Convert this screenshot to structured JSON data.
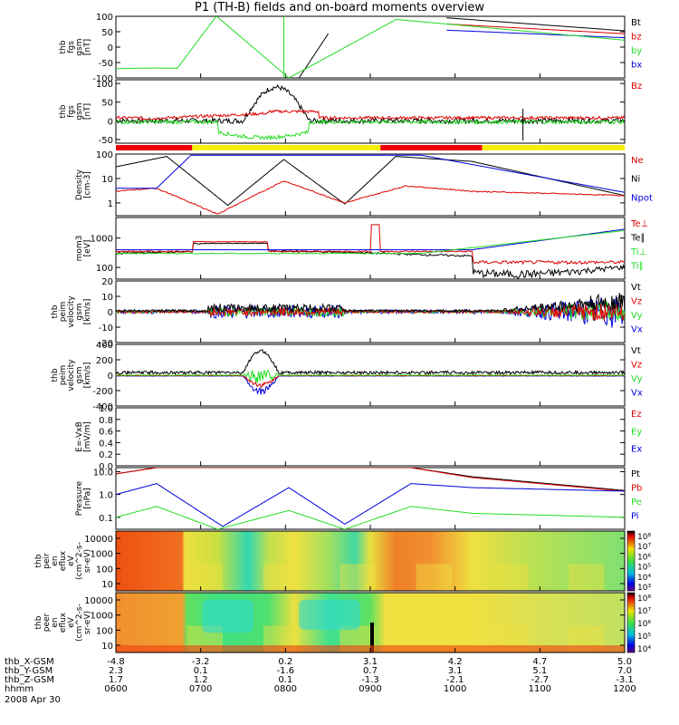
{
  "title": "P1 (TH-B) fields and on-board moments overview",
  "date": "2008 Apr 30",
  "colors": {
    "black": "#000000",
    "red": "#dd0000",
    "green": "#22dd22",
    "blue": "#0000dd",
    "yellow": "#f8f000",
    "bar_red": "#ee0000"
  },
  "ephemeris": {
    "labels": [
      "thb_X-GSM",
      "thb_Y-GSM",
      "thb_Z-GSM",
      "hhmm"
    ],
    "columns": [
      {
        "x": "-4.8",
        "y": "2.3",
        "z": "1.7",
        "t": "0600"
      },
      {
        "x": "-3.2",
        "y": "0.1",
        "z": "1.2",
        "t": "0700"
      },
      {
        "x": "0.2",
        "y": "-1.6",
        "z": "0.1",
        "t": "0800"
      },
      {
        "x": "3.1",
        "y": "0.7",
        "z": "-1.3",
        "t": "0900"
      },
      {
        "x": "4.2",
        "y": "3.1",
        "z": "-2.1",
        "t": "1000"
      },
      {
        "x": "4.7",
        "y": "5.1",
        "z": "-2.7",
        "t": "1100"
      },
      {
        "x": "5.0",
        "y": "7.0",
        "z": "-3.1",
        "t": "1200"
      }
    ]
  },
  "chart_data": {
    "type": "line",
    "x_range": [
      "0600",
      "1200"
    ],
    "mode_bar": [
      {
        "from": 0.0,
        "to": 0.15,
        "color": "red"
      },
      {
        "from": 0.15,
        "to": 0.52,
        "color": "yellow"
      },
      {
        "from": 0.52,
        "to": 0.72,
        "color": "red"
      },
      {
        "from": 0.72,
        "to": 1.0,
        "color": "yellow"
      }
    ],
    "panels": [
      {
        "ylabel": [
          "thb",
          "fgs",
          "gsm",
          "[nT]"
        ],
        "scale": "linear",
        "ylim": [
          -100,
          100
        ],
        "ticks": [
          "100",
          "50",
          "0",
          "-50",
          "-100"
        ],
        "legend": [
          {
            "t": "Bt",
            "c": "black"
          },
          {
            "t": "bz",
            "c": "red"
          },
          {
            "t": "by",
            "c": "green"
          },
          {
            "t": "bx",
            "c": "blue"
          }
        ]
      },
      {
        "ylabel": [
          "thb",
          "fgs",
          "gsm",
          "[nT]"
        ],
        "scale": "linear",
        "ylim": [
          -60,
          110
        ],
        "ticks": [
          "100",
          "50",
          "0",
          "-50"
        ],
        "legend": [
          {
            "t": "Bz",
            "c": "red"
          }
        ]
      },
      {
        "ylabel": [
          "Density",
          "[cm-3]"
        ],
        "scale": "log",
        "ylim": [
          0.3,
          100
        ],
        "ticks": [
          "100",
          "10",
          "1"
        ],
        "legend": [
          {
            "t": "Ne",
            "c": "red"
          },
          {
            "t": "Ni",
            "c": "black"
          },
          {
            "t": "Npot",
            "c": "blue"
          }
        ]
      },
      {
        "ylabel": [
          "mom3",
          "[eV]"
        ],
        "scale": "log",
        "ylim": [
          40,
          5000
        ],
        "ticks": [
          "1000",
          "100"
        ],
        "legend": [
          {
            "t": "Te⊥",
            "c": "red"
          },
          {
            "t": "Te∥",
            "c": "black"
          },
          {
            "t": "Ti⊥",
            "c": "green"
          },
          {
            "t": "Ti∥",
            "c": "green"
          }
        ]
      },
      {
        "ylabel": [
          "thb",
          "peim",
          "velocity",
          "gsm",
          "[km/s]"
        ],
        "scale": "linear",
        "ylim": [
          -20,
          20
        ],
        "ticks": [
          "20",
          "10",
          "0",
          "-10",
          "-20"
        ],
        "legend": [
          {
            "t": "Vt",
            "c": "black"
          },
          {
            "t": "Vz",
            "c": "red"
          },
          {
            "t": "Vy",
            "c": "green"
          },
          {
            "t": "Vx",
            "c": "blue"
          }
        ]
      },
      {
        "ylabel": [
          "thb",
          "peim",
          "velocity",
          "gsm",
          "[km/s]"
        ],
        "scale": "linear",
        "ylim": [
          -400,
          400
        ],
        "ticks": [
          "400",
          "200",
          "0",
          "-200",
          "-400"
        ],
        "legend": [
          {
            "t": "Vt",
            "c": "black"
          },
          {
            "t": "Vz",
            "c": "red"
          },
          {
            "t": "Vy",
            "c": "green"
          },
          {
            "t": "Vx",
            "c": "blue"
          }
        ]
      },
      {
        "ylabel": [
          "E=-VxB",
          "[mV/m]"
        ],
        "scale": "linear",
        "ylim": [
          0,
          1
        ],
        "ticks": [
          "1.0",
          "0.8",
          "0.6",
          "0.4",
          "0.2",
          "0.0"
        ],
        "legend": [
          {
            "t": "Ez",
            "c": "red"
          },
          {
            "t": "Ey",
            "c": "green"
          },
          {
            "t": "Ex",
            "c": "blue"
          }
        ]
      },
      {
        "ylabel": [
          "Pressure",
          "[nPa]"
        ],
        "scale": "log",
        "ylim": [
          0.03,
          15
        ],
        "ticks": [
          "10.0",
          "1.0",
          "0.1"
        ],
        "legend": [
          {
            "t": "Pt",
            "c": "black"
          },
          {
            "t": "Pb",
            "c": "red"
          },
          {
            "t": "Pe",
            "c": "green"
          },
          {
            "t": "Pi",
            "c": "blue"
          }
        ]
      },
      {
        "ylabel": [
          "thb",
          "peir",
          "en",
          "eflux",
          "eV",
          "(cm^2-s-",
          "sr-eV)"
        ],
        "scale": "log",
        "type": "heatmap",
        "ticks": [
          "10000",
          "1000",
          "100",
          "10"
        ],
        "colorbar": [
          "10⁸",
          "10⁷",
          "10⁶",
          "10⁵",
          "10⁴",
          "10³"
        ]
      },
      {
        "ylabel": [
          "thb",
          "peer",
          "en",
          "eflux",
          "eV",
          "(cm^2-s-",
          "sr-eV)"
        ],
        "scale": "log",
        "type": "heatmap",
        "ticks": [
          "10000",
          "1000",
          "100",
          "10"
        ],
        "colorbar": [
          "10⁸",
          "10⁷",
          "10⁶",
          "10⁵",
          "10⁴"
        ]
      }
    ]
  }
}
